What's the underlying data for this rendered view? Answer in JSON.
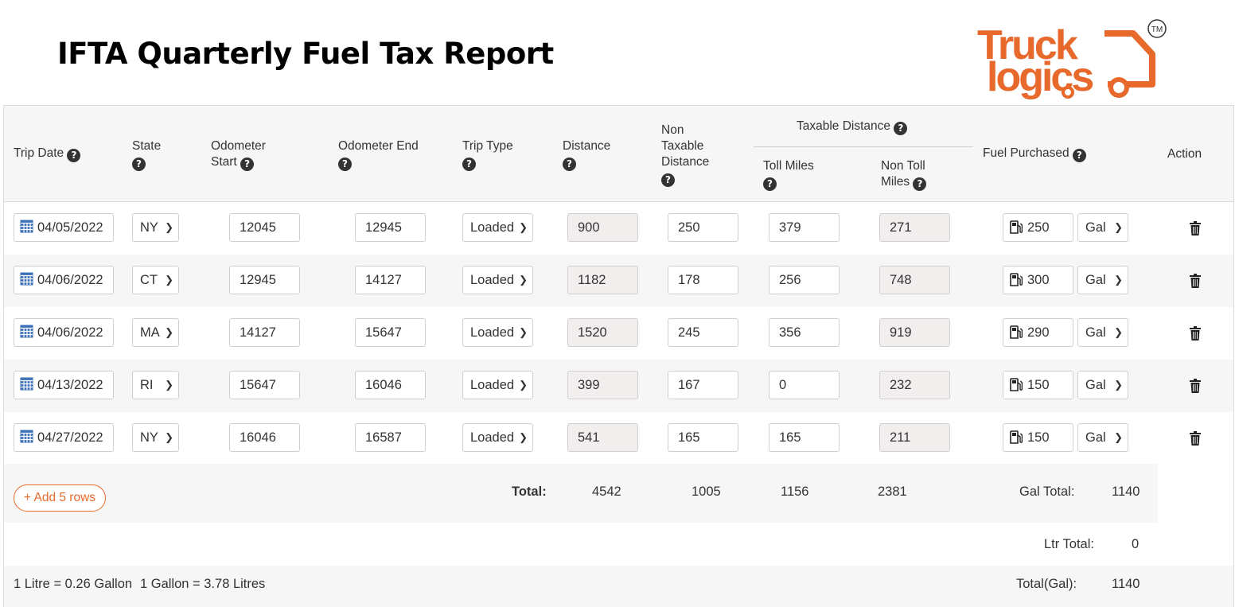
{
  "page": {
    "title": "IFTA Quarterly Fuel Tax Report",
    "logo": {
      "line1": "Truck",
      "line2": "logics",
      "mark": "TM",
      "color": "#e8692c"
    }
  },
  "table": {
    "headers": {
      "trip_date": "Trip Date",
      "state": "State",
      "odometer_start_1": "Odometer",
      "odometer_start_2": "Start",
      "odometer_end": "Odometer End",
      "trip_type": "Trip Type",
      "distance": "Distance",
      "non_taxable_1": "Non",
      "non_taxable_2": "Taxable",
      "non_taxable_3": "Distance",
      "taxable_distance": "Taxable Distance",
      "toll_miles": "Toll Miles",
      "non_toll_1": "Non Toll",
      "non_toll_2": "Miles",
      "fuel_purchased": "Fuel Purchased",
      "action": "Action"
    },
    "rows": [
      {
        "date": "04/05/2022",
        "state": "NY",
        "odo_start": "12045",
        "odo_end": "12945",
        "trip_type": "Loaded",
        "distance": "900",
        "non_taxable": "250",
        "toll": "379",
        "non_toll": "271",
        "fuel": "250",
        "unit": "Gal"
      },
      {
        "date": "04/06/2022",
        "state": "CT",
        "odo_start": "12945",
        "odo_end": "14127",
        "trip_type": "Loaded",
        "distance": "1182",
        "non_taxable": "178",
        "toll": "256",
        "non_toll": "748",
        "fuel": "300",
        "unit": "Gal"
      },
      {
        "date": "04/06/2022",
        "state": "MA",
        "odo_start": "14127",
        "odo_end": "15647",
        "trip_type": "Loaded",
        "distance": "1520",
        "non_taxable": "245",
        "toll": "356",
        "non_toll": "919",
        "fuel": "290",
        "unit": "Gal"
      },
      {
        "date": "04/13/2022",
        "state": "RI",
        "odo_start": "15647",
        "odo_end": "16046",
        "trip_type": "Loaded",
        "distance": "399",
        "non_taxable": "167",
        "toll": "0",
        "non_toll": "232",
        "fuel": "150",
        "unit": "Gal"
      },
      {
        "date": "04/27/2022",
        "state": "NY",
        "odo_start": "16046",
        "odo_end": "16587",
        "trip_type": "Loaded",
        "distance": "541",
        "non_taxable": "165",
        "toll": "165",
        "non_toll": "211",
        "fuel": "150",
        "unit": "Gal"
      }
    ]
  },
  "totals": {
    "add_rows_label": "Add 5 rows",
    "total_label": "Total:",
    "distance": "4542",
    "non_taxable": "1005",
    "toll": "1156",
    "non_toll": "2381",
    "gal_total_label": "Gal Total:",
    "gal_total": "1140",
    "ltr_total_label": "Ltr Total:",
    "ltr_total": "0",
    "total_gal_label": "Total(Gal):",
    "total_gal": "1140",
    "conversion_1": "1 Litre = 0.26 Gallon",
    "conversion_2": "1 Gallon = 3.78 Litres"
  }
}
